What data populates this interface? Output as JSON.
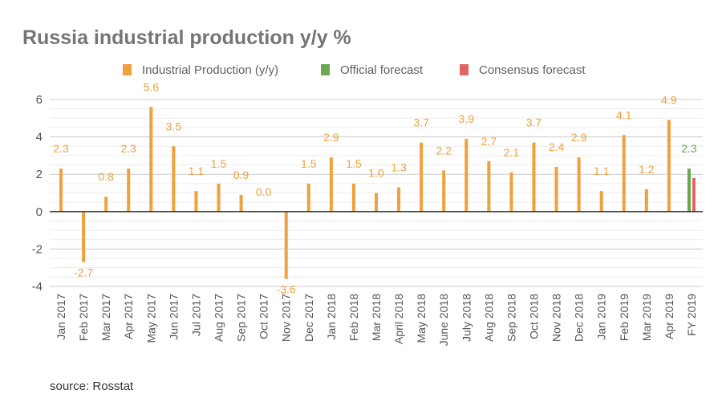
{
  "chart_data": {
    "type": "bar",
    "title": "Russia industrial production y/y %",
    "source": "source: Rosstat",
    "ylim": [
      -4,
      6
    ],
    "yticks": [
      6,
      4,
      2,
      0,
      -2,
      -4
    ],
    "grid": true,
    "legend_position": "top",
    "categories": [
      "Jan 2017",
      "Feb 2017",
      "Mar 2017",
      "Apr 2017",
      "May 2017",
      "Jun 2017",
      "Jul 2017",
      "Aug 2017",
      "Sep 2017",
      "Oct 2017",
      "Nov 2017",
      "Dec 2017",
      "Jan 2018",
      "Feb 2018",
      "Mar 2018",
      "April 2018",
      "May 2018",
      "June 2018",
      "July 2018",
      "Aug 2018",
      "Sep 2018",
      "Oct 2018",
      "Nov 2018",
      "Dec 2018",
      "Jan 2019",
      "Feb 2019",
      "Mar 2019",
      "Apr 2019",
      "FY 2019"
    ],
    "series": [
      {
        "name": "Industrial Production (y/y)",
        "color": "#f0a03c",
        "values": [
          2.3,
          -2.7,
          0.8,
          2.3,
          5.6,
          3.5,
          1.1,
          1.5,
          0.9,
          0.0,
          -3.6,
          1.5,
          2.9,
          1.5,
          1.0,
          1.3,
          3.7,
          2.2,
          3.9,
          2.7,
          2.1,
          3.7,
          2.4,
          2.9,
          1.1,
          4.1,
          1.2,
          4.9,
          null
        ],
        "labels": [
          "2.3",
          "-2.7",
          "0.8",
          "2.3",
          "5.6",
          "3.5",
          "1.1",
          "1.5",
          "0.9",
          "0.0",
          "-3.6",
          "1.5",
          "2.9",
          "1.5",
          "1.0",
          "1.3",
          "3.7",
          "2.2",
          "3.9",
          "2.7",
          "2.1",
          "3.7",
          "2.4",
          "2.9",
          "1.1",
          "4.1",
          "1.2",
          "4.9",
          null
        ]
      },
      {
        "name": "Official forecast",
        "color": "#6aa84f",
        "values": [
          null,
          null,
          null,
          null,
          null,
          null,
          null,
          null,
          null,
          null,
          null,
          null,
          null,
          null,
          null,
          null,
          null,
          null,
          null,
          null,
          null,
          null,
          null,
          null,
          null,
          null,
          null,
          null,
          2.3
        ],
        "labels": [
          null,
          null,
          null,
          null,
          null,
          null,
          null,
          null,
          null,
          null,
          null,
          null,
          null,
          null,
          null,
          null,
          null,
          null,
          null,
          null,
          null,
          null,
          null,
          null,
          null,
          null,
          null,
          null,
          "2.3"
        ]
      },
      {
        "name": "Consensus forecast",
        "color": "#e06666",
        "values": [
          null,
          null,
          null,
          null,
          null,
          null,
          null,
          null,
          null,
          null,
          null,
          null,
          null,
          null,
          null,
          null,
          null,
          null,
          null,
          null,
          null,
          null,
          null,
          null,
          null,
          null,
          null,
          null,
          1.8
        ],
        "labels": [
          null,
          null,
          null,
          null,
          null,
          null,
          null,
          null,
          null,
          null,
          null,
          null,
          null,
          null,
          null,
          null,
          null,
          null,
          null,
          null,
          null,
          null,
          null,
          null,
          null,
          null,
          null,
          null,
          null
        ]
      }
    ]
  }
}
